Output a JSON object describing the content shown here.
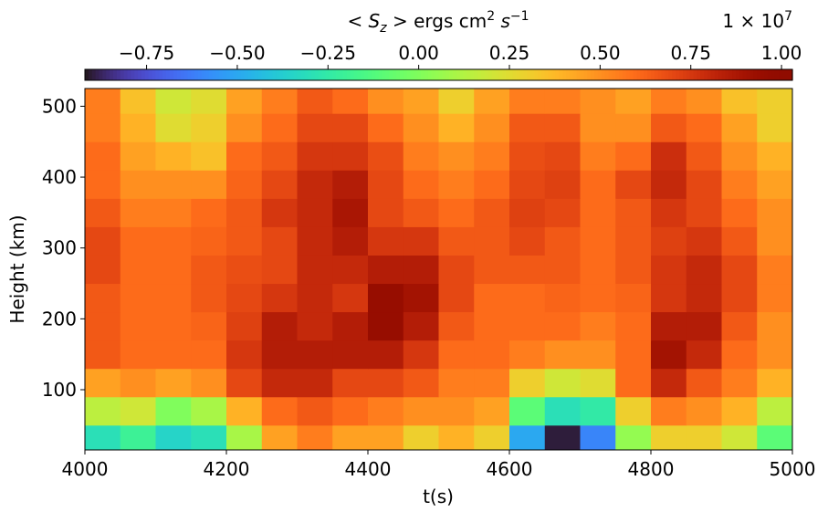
{
  "chart_data": {
    "type": "heatmap",
    "colormap": "turbo",
    "colorbar_label": [
      "< S",
      "z",
      " >  ergs cm",
      "2",
      " s",
      "−1"
    ],
    "colorbar_offset": [
      "1 × 10",
      "7"
    ],
    "clim": [
      -0.92,
      1.03
    ],
    "cticks": [
      {
        "value": -0.75,
        "label": "−0.75"
      },
      {
        "value": -0.5,
        "label": "−0.50"
      },
      {
        "value": -0.25,
        "label": "−0.25"
      },
      {
        "value": 0,
        "label": "0.00"
      },
      {
        "value": 0.25,
        "label": "0.25"
      },
      {
        "value": 0.5,
        "label": "0.50"
      },
      {
        "value": 0.75,
        "label": "0.75"
      },
      {
        "value": 1,
        "label": "1.00"
      }
    ],
    "xlabel": "t(s)",
    "ylabel": "Height (km)",
    "xlim": [
      4000,
      5000
    ],
    "ylim": [
      15,
      525
    ],
    "xticks": [
      4000,
      4200,
      4400,
      4600,
      4800,
      5000
    ],
    "yticks": [
      100,
      200,
      300,
      400,
      500
    ],
    "x": [
      4025,
      4075,
      4125,
      4175,
      4225,
      4275,
      4325,
      4375,
      4425,
      4475,
      4525,
      4575,
      4625,
      4675,
      4725,
      4775,
      4825,
      4875,
      4925,
      4975
    ],
    "y": [
      30,
      70,
      110,
      150,
      190,
      230,
      270,
      310,
      350,
      390,
      430,
      470,
      510
    ],
    "z": [
      [
        -0.3,
        -0.2,
        -0.35,
        -0.3,
        0.1,
        0.45,
        0.55,
        0.45,
        0.45,
        0.3,
        0.4,
        0.3,
        -0.5,
        -0.9,
        -0.6,
        0.05,
        0.3,
        0.3,
        0.2,
        -0.1
      ],
      [
        0.15,
        0.2,
        0,
        0.1,
        0.4,
        0.6,
        0.65,
        0.6,
        0.55,
        0.5,
        0.5,
        0.45,
        -0.1,
        -0.3,
        -0.25,
        0.3,
        0.55,
        0.5,
        0.4,
        0.15
      ],
      [
        0.45,
        0.5,
        0.45,
        0.5,
        0.7,
        0.8,
        0.8,
        0.7,
        0.7,
        0.65,
        0.55,
        0.55,
        0.3,
        0.2,
        0.25,
        0.6,
        0.8,
        0.65,
        0.55,
        0.4
      ],
      [
        0.65,
        0.6,
        0.6,
        0.6,
        0.75,
        0.85,
        0.85,
        0.85,
        0.85,
        0.75,
        0.6,
        0.6,
        0.55,
        0.5,
        0.5,
        0.6,
        0.9,
        0.8,
        0.6,
        0.5
      ],
      [
        0.65,
        0.6,
        0.6,
        0.62,
        0.72,
        0.85,
        0.8,
        0.85,
        0.95,
        0.85,
        0.65,
        0.6,
        0.6,
        0.6,
        0.55,
        0.6,
        0.85,
        0.85,
        0.65,
        0.5
      ],
      [
        0.65,
        0.6,
        0.6,
        0.65,
        0.7,
        0.75,
        0.8,
        0.75,
        0.95,
        0.9,
        0.7,
        0.6,
        0.6,
        0.62,
        0.6,
        0.62,
        0.75,
        0.8,
        0.7,
        0.55
      ],
      [
        0.7,
        0.6,
        0.6,
        0.65,
        0.68,
        0.7,
        0.8,
        0.8,
        0.85,
        0.85,
        0.7,
        0.65,
        0.65,
        0.65,
        0.6,
        0.65,
        0.75,
        0.8,
        0.7,
        0.55
      ],
      [
        0.7,
        0.6,
        0.6,
        0.62,
        0.65,
        0.7,
        0.8,
        0.85,
        0.75,
        0.75,
        0.65,
        0.65,
        0.7,
        0.65,
        0.6,
        0.65,
        0.72,
        0.75,
        0.65,
        0.5
      ],
      [
        0.65,
        0.55,
        0.55,
        0.6,
        0.65,
        0.75,
        0.8,
        0.88,
        0.7,
        0.65,
        0.6,
        0.65,
        0.72,
        0.7,
        0.6,
        0.65,
        0.75,
        0.7,
        0.6,
        0.5
      ],
      [
        0.6,
        0.5,
        0.5,
        0.5,
        0.62,
        0.7,
        0.8,
        0.85,
        0.7,
        0.6,
        0.55,
        0.6,
        0.7,
        0.72,
        0.6,
        0.7,
        0.8,
        0.7,
        0.55,
        0.45
      ],
      [
        0.6,
        0.45,
        0.4,
        0.35,
        0.6,
        0.65,
        0.75,
        0.75,
        0.68,
        0.55,
        0.5,
        0.55,
        0.68,
        0.7,
        0.55,
        0.6,
        0.78,
        0.65,
        0.5,
        0.4
      ],
      [
        0.55,
        0.4,
        0.25,
        0.3,
        0.5,
        0.6,
        0.7,
        0.7,
        0.6,
        0.5,
        0.4,
        0.5,
        0.65,
        0.65,
        0.5,
        0.5,
        0.65,
        0.6,
        0.45,
        0.3
      ],
      [
        0.55,
        0.35,
        0.2,
        0.25,
        0.45,
        0.55,
        0.65,
        0.6,
        0.5,
        0.45,
        0.3,
        0.45,
        0.55,
        0.55,
        0.5,
        0.45,
        0.55,
        0.5,
        0.35,
        0.3
      ]
    ]
  }
}
